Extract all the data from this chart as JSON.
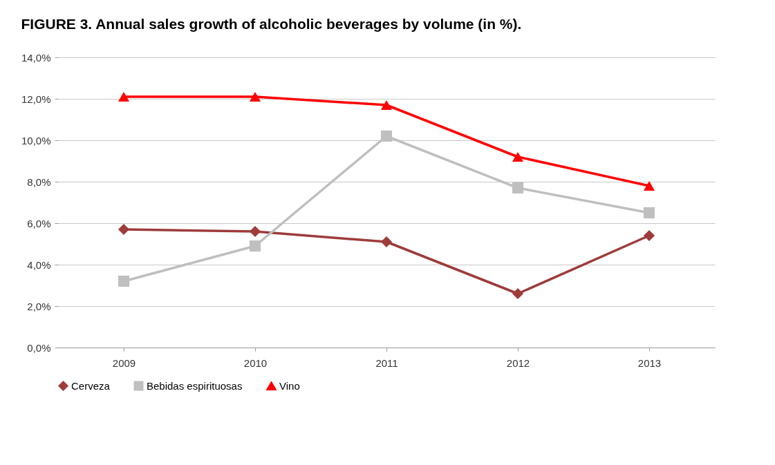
{
  "chart_data": {
    "type": "line",
    "title": "FIGURE 3. Annual sales growth of alcoholic beverages by volume (in %).",
    "categories": [
      "2009",
      "2010",
      "2011",
      "2012",
      "2013"
    ],
    "series": [
      {
        "name": "Cerveza",
        "color": "#9e3b3b",
        "marker": "diamond",
        "values": [
          5.7,
          5.6,
          5.1,
          2.6,
          5.4
        ]
      },
      {
        "name": "Bebidas espirituosas",
        "color": "#bfbfbf",
        "marker": "square",
        "values": [
          3.2,
          4.9,
          10.2,
          7.7,
          6.5
        ]
      },
      {
        "name": "Vino",
        "color": "#ff0000",
        "marker": "triangle",
        "values": [
          12.1,
          12.1,
          11.7,
          9.2,
          7.8
        ]
      }
    ],
    "ylim": [
      0,
      14
    ],
    "yticks": [
      {
        "value": 0,
        "label": "0,0%"
      },
      {
        "value": 2,
        "label": "2,0%"
      },
      {
        "value": 4,
        "label": "4,0%"
      },
      {
        "value": 6,
        "label": "6,0%"
      },
      {
        "value": 8,
        "label": "8,0%"
      },
      {
        "value": 10,
        "label": "10,0%"
      },
      {
        "value": 12,
        "label": "12,0%"
      },
      {
        "value": 14,
        "label": "14,0%"
      }
    ],
    "grid": "y",
    "legend": "bottom",
    "line_style": "solid"
  }
}
